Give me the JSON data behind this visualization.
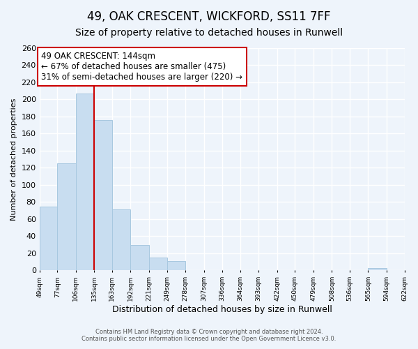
{
  "title": "49, OAK CRESCENT, WICKFORD, SS11 7FF",
  "subtitle": "Size of property relative to detached houses in Runwell",
  "xlabel": "Distribution of detached houses by size in Runwell",
  "ylabel": "Number of detached properties",
  "bar_color": "#c8ddf0",
  "bar_edge_color": "#a8c8e0",
  "marker_line_color": "#cc0000",
  "marker_x": 135,
  "annotation_text": "49 OAK CRESCENT: 144sqm\n← 67% of detached houses are smaller (475)\n31% of semi-detached houses are larger (220) →",
  "annotation_box_color": "white",
  "annotation_box_edge": "#cc0000",
  "footer_line1": "Contains HM Land Registry data © Crown copyright and database right 2024.",
  "footer_line2": "Contains public sector information licensed under the Open Government Licence v3.0.",
  "bins": [
    49,
    77,
    106,
    135,
    163,
    192,
    221,
    249,
    278,
    307,
    336,
    364,
    393,
    422,
    450,
    479,
    508,
    536,
    565,
    594,
    622
  ],
  "counts": [
    75,
    125,
    207,
    176,
    71,
    30,
    15,
    11,
    0,
    0,
    0,
    0,
    0,
    0,
    0,
    0,
    0,
    0,
    3,
    0,
    0
  ],
  "ylim": [
    0,
    260
  ],
  "xlim": [
    49,
    622
  ],
  "yticks": [
    0,
    20,
    40,
    60,
    80,
    100,
    120,
    140,
    160,
    180,
    200,
    220,
    240,
    260
  ],
  "xtick_labels": [
    "49sqm",
    "77sqm",
    "106sqm",
    "135sqm",
    "163sqm",
    "192sqm",
    "221sqm",
    "249sqm",
    "278sqm",
    "307sqm",
    "336sqm",
    "364sqm",
    "393sqm",
    "422sqm",
    "450sqm",
    "479sqm",
    "508sqm",
    "536sqm",
    "565sqm",
    "594sqm",
    "622sqm"
  ],
  "background_color": "#eef4fb",
  "grid_color": "#ffffff",
  "title_fontsize": 12,
  "subtitle_fontsize": 10,
  "annotation_fontsize": 8.5,
  "ylabel_fontsize": 8,
  "xlabel_fontsize": 9
}
